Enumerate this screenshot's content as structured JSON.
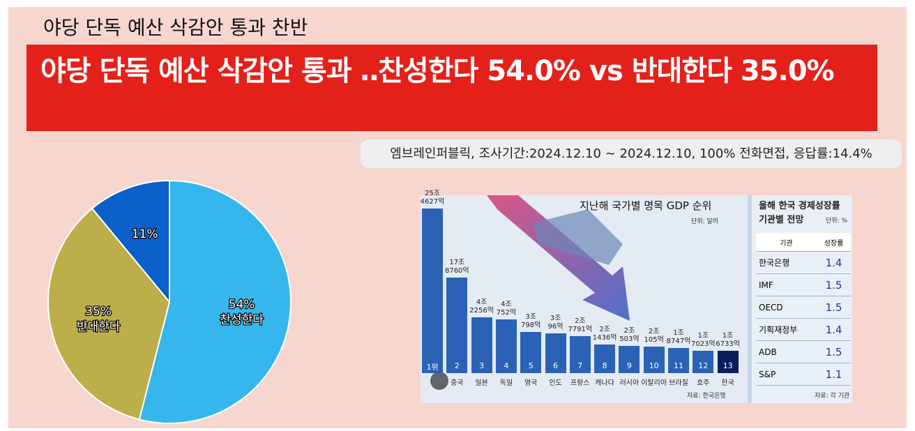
{
  "header": {
    "title": "야당 단독 예산 삭감안 통과 찬반",
    "banner": "야당 단독 예산 삭감안 통과 ‥찬성한다 54.0% vs 반대한다 35.0%",
    "source": "엠브레인퍼블릭, 조사기간:2024.12.10 ~ 2024.12.10, 100% 전화면접, 응답률:14.4%"
  },
  "chart_data": [
    {
      "type": "pie",
      "categories": [
        "찬성한다",
        "반대한다",
        null
      ],
      "values": [
        54,
        35,
        11
      ],
      "value_labels": [
        "54%",
        "35%",
        "11%"
      ],
      "colors": [
        "#35b6ec",
        "#bcae4b",
        "#0b60c9"
      ]
    },
    {
      "type": "bar",
      "title": "지난해 국가별 명목 GDP 순위",
      "subtitle": "단위: 달러",
      "note": "자료: 한국은행",
      "categories": [
        null,
        "중국",
        "일본",
        "독일",
        "영국",
        "인도",
        "프랑스",
        "캐나다",
        "러시아",
        "이탈리아",
        "브라질",
        "호주",
        "한국"
      ],
      "ranks": [
        "1위",
        "2",
        "3",
        "4",
        "5",
        "6",
        "7",
        "8",
        "9",
        "10",
        "11",
        "12",
        "13"
      ],
      "values": [
        254627,
        178760,
        42256,
        40752,
        30798,
        30096,
        27791,
        21436,
        20503,
        20105,
        18747,
        17023,
        16733
      ],
      "value_labels": [
        "25조\n4627억",
        "17조\n8760억",
        "4조\n2256억",
        "4조\n752억",
        "3조\n798억",
        "3조\n96억",
        "2조\n7791억",
        "2조\n1436억",
        "2조\n503억",
        "2조\n105억",
        "1조\n8747억",
        "1조\n7023억",
        "1조\n6733억"
      ],
      "colors": [
        "#2b62b5",
        "#2b62b5",
        "#2b62b5",
        "#2b62b5",
        "#2b62b5",
        "#2b62b5",
        "#2b62b5",
        "#2b62b5",
        "#2b62b5",
        "#2b62b5",
        "#2b62b5",
        "#2b62b5",
        "#0c1d5e"
      ]
    }
  ],
  "table": {
    "title": "올해 한국 경제성장률\n기관별 전망",
    "unit": "단위: %",
    "columns": [
      "기관",
      "성장률"
    ],
    "rows": [
      [
        "한국은행",
        "1.4"
      ],
      [
        "IMF",
        "1.5"
      ],
      [
        "OECD",
        "1.5"
      ],
      [
        "기획재정부",
        "1.4"
      ],
      [
        "ADB",
        "1.5"
      ],
      [
        "S&P",
        "1.1"
      ]
    ],
    "note": "자료: 각 기관"
  }
}
